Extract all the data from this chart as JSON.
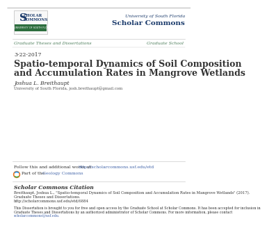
{
  "bg_color": "#ffffff",
  "header_line_color": "#cccccc",
  "header_top_line_color": "#bbbbbb",
  "usf_blue": "#1a3a6b",
  "link_green": "#4a7c59",
  "link_blue": "#4466aa",
  "gray_text": "#888888",
  "dark_text": "#333333",
  "medium_text": "#555555",
  "logo_green": "#2d6e3e",
  "date": "3-22-2017",
  "title_line1": "Spatio-temporal Dynamics of Soil Composition",
  "title_line2": "and Accumulation Rates in Mangrove Wetlands",
  "author_name": "Joshua L. Breithaupt",
  "author_affil": "University of South Florida, josh.breithaupt@gmail.com",
  "nav_left": "Graduate Theses and Dissertations",
  "nav_right": "Graduate School",
  "usf_line1": "University of South Florida",
  "usf_line2": "Scholar Commons",
  "follow_text": "Follow this and additional works at: ",
  "follow_link": "http://scholarcommons.usf.edu/etd",
  "part_text": "Part of the ",
  "part_link": "Geology Commons",
  "citation_header": "Scholar Commons Citation",
  "citation_line1": "Breithaupt, Joshua L., \"Spatio-temporal Dynamics of Soil Composition and Accumulation Rates in Mangrove Wetlands\" (2017).",
  "citation_line2": "Graduate Theses and Dissertations.",
  "citation_line3": "http://scholarcommons.usf.edu/etd/6884",
  "disclaimer_line1": "This Dissertation is brought to you for free and open access by the Graduate School at Scholar Commons. It has been accepted for inclusion in",
  "disclaimer_line2": "Graduate Theses and Dissertations by an authorized administrator of Scholar Commons. For more information, please contact",
  "disclaimer_line3": "scholarcommons@usf.edu."
}
